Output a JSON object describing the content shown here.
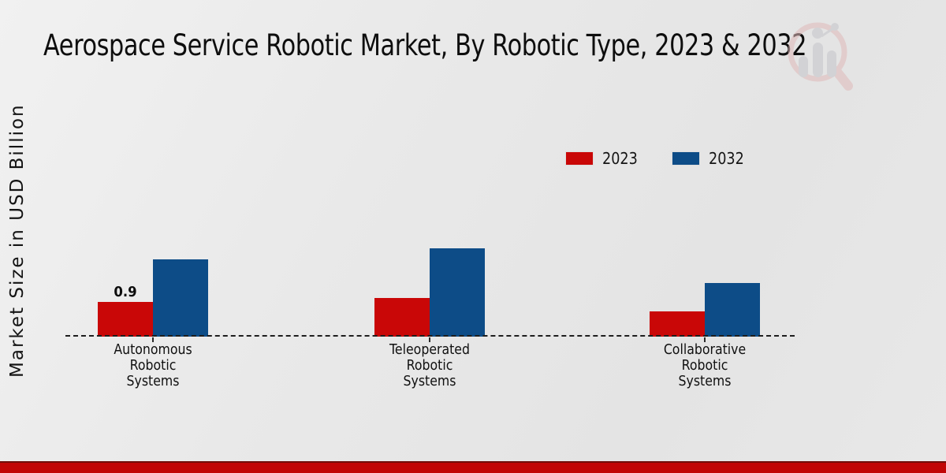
{
  "title": "Aerospace Service Robotic Market, By Robotic Type, 2023 & 2032",
  "y_axis_label": "Market Size in USD Billion",
  "colors": {
    "red_2023": "#c90707",
    "blue_2032": "#0d4c87",
    "footer_bar": "#c10505",
    "background": "#e8e8e8",
    "baseline": "#1d1d1d"
  },
  "chart_data": {
    "type": "bar",
    "categories": [
      "Autonomous Robotic Systems",
      "Teleoperated Robotic Systems",
      "Collaborative Robotic Systems"
    ],
    "series": [
      {
        "name": "2023",
        "color": "#c90707",
        "values": [
          0.9,
          1.0,
          0.65
        ]
      },
      {
        "name": "2032",
        "color": "#0d4c87",
        "values": [
          2.0,
          2.3,
          1.4
        ]
      }
    ],
    "data_labels": [
      {
        "series_index": 0,
        "category_index": 0,
        "text": "0.9"
      }
    ],
    "title": "Aerospace Service Robotic Market, By Robotic Type, 2023 & 2032",
    "xlabel": "",
    "ylabel": "Market Size in USD Billion",
    "ylim": [
      0,
      2.6
    ],
    "grid": false,
    "legend_position": "top-right",
    "baseline_style": "dashed",
    "y_axis_ticks_visible": false
  },
  "watermark": {
    "name": "magnifier-bar-chart-logo"
  }
}
